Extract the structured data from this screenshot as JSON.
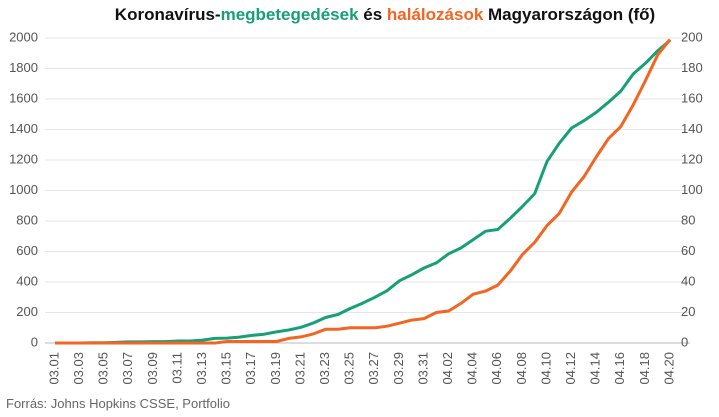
{
  "chart_data": {
    "type": "line",
    "title": [
      {
        "text": "Koronavírus-",
        "color": "#111111"
      },
      {
        "text": "megbetegedések",
        "color": "#17a077"
      },
      {
        "text": " és ",
        "color": "#111111"
      },
      {
        "text": "halálozások",
        "color": "#f26522"
      },
      {
        "text": " Magyarországon  (fő)",
        "color": "#111111"
      }
    ],
    "source": "Forrás: Johns Hopkins CSSE, Portfolio",
    "categories": [
      "03.01",
      null,
      "03.03",
      null,
      "03.05",
      null,
      "03.07",
      null,
      "03.09",
      null,
      "03.11",
      null,
      "03.13",
      null,
      "03.15",
      null,
      "03.17",
      null,
      "03.19",
      null,
      "03.21",
      null,
      "03.23",
      null,
      "03.25",
      null,
      "03.27",
      null,
      "03.29",
      null,
      "03.31",
      null,
      "04.02",
      null,
      "04.04",
      null,
      "04.06",
      null,
      "04.08",
      null,
      "04.10",
      null,
      "04.12",
      null,
      "04.14",
      null,
      "04.16",
      null,
      "04.18",
      null,
      "04.20"
    ],
    "series": [
      {
        "name": "megbetegedések",
        "color": "#17a077",
        "axis": "y",
        "values": [
          0,
          0,
          0,
          2,
          2,
          4,
          7,
          7,
          9,
          9,
          13,
          13,
          19,
          30,
          32,
          39,
          50,
          58,
          73,
          85,
          103,
          131,
          167,
          187,
          226,
          261,
          300,
          343,
          408,
          447,
          492,
          525,
          585,
          623,
          678,
          733,
          744,
          817,
          895,
          980,
          1190,
          1310,
          1410,
          1458,
          1512,
          1579,
          1652,
          1763,
          1834,
          1916,
          1984
        ]
      },
      {
        "name": "halálozások",
        "color": "#f26522",
        "axis": "y2",
        "values": [
          0,
          0,
          0,
          0,
          0,
          0,
          0,
          0,
          0,
          0,
          0,
          0,
          0,
          0,
          1,
          1,
          1,
          1,
          1,
          3,
          4,
          6,
          9,
          9,
          10,
          10,
          10,
          11,
          13,
          15,
          16,
          20,
          21,
          26,
          32,
          34,
          38,
          47,
          58,
          66,
          77,
          85,
          99,
          109,
          122,
          134,
          142,
          156,
          172,
          189,
          199
        ]
      }
    ],
    "ylim": [
      0,
      2000
    ],
    "yticks": [
      0,
      200,
      400,
      600,
      800,
      1000,
      1200,
      1400,
      1600,
      1800,
      2000
    ],
    "y2lim": [
      0,
      200
    ],
    "y2ticks": [
      0,
      20,
      40,
      60,
      80,
      100,
      120,
      140,
      160,
      180,
      200
    ],
    "grid": true
  }
}
